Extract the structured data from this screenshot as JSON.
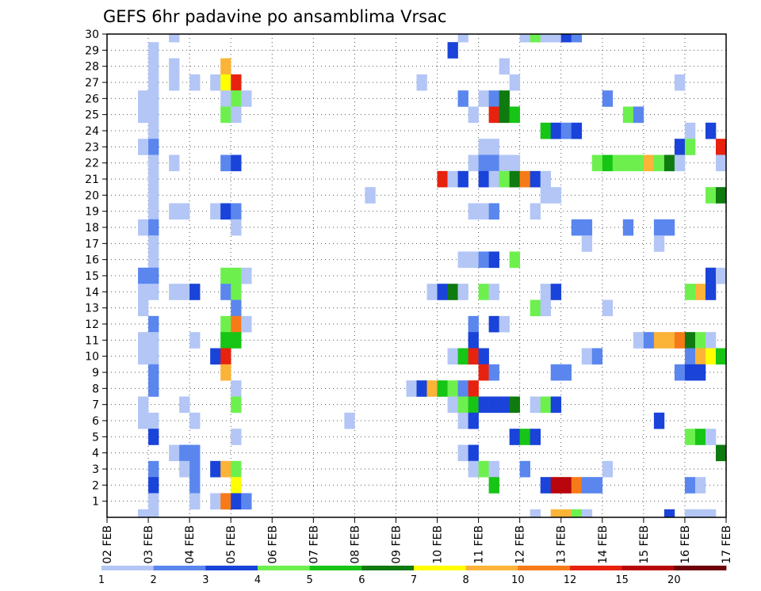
{
  "chart_data": {
    "type": "heatmap",
    "title": "GEFS 6hr padavine po ansamblima Vrsac",
    "y_tick_labels": [
      "1",
      "2",
      "3",
      "4",
      "5",
      "6",
      "7",
      "8",
      "9",
      "10",
      "11",
      "12",
      "13",
      "14",
      "15",
      "16",
      "17",
      "18",
      "19",
      "20",
      "21",
      "22",
      "23",
      "24",
      "25",
      "26",
      "27",
      "28",
      "29",
      "30"
    ],
    "x_tick_labels": [
      "02 FEB",
      "03 FEB",
      "04 FEB",
      "05 FEB",
      "06 FEB",
      "07 FEB",
      "08 FEB",
      "09 FEB",
      "10 FEB",
      "11 FEB",
      "12 FEB",
      "13 FEB",
      "14 FEB",
      "15 FEB",
      "16 FEB",
      "17 FEB"
    ],
    "x_steps": 60,
    "grid": true,
    "legend": {
      "placement": "bottom",
      "labels": [
        "1",
        "2",
        "3",
        "4",
        "5",
        "6",
        "7",
        "8",
        "10",
        "12",
        "15",
        "20"
      ],
      "colors": [
        "#b3c6f5",
        "#5a86ee",
        "#1a43d9",
        "#6df04e",
        "#16c516",
        "#0f7a0f",
        "#ffff00",
        "#fbb338",
        "#f77a18",
        "#e7220f",
        "#b8060c",
        "#6e0206"
      ]
    },
    "colors": {
      "c1": "#b3c6f5",
      "c2": "#5a86ee",
      "c3": "#1a43d9",
      "c4": "#6df04e",
      "c5": "#16c516",
      "c6": "#0f7a0f",
      "c7": "#ffff00",
      "c8": "#fbb338",
      "c10": "#f77a18",
      "c12": "#e7220f",
      "c15": "#b8060c",
      "c20": "#6e0206"
    },
    "cells": [
      {
        "m": 30,
        "t": 7,
        "c": 1
      },
      {
        "m": 30,
        "t": 35,
        "c": 1
      },
      {
        "m": 30,
        "t": 41,
        "c": 1
      },
      {
        "m": 30,
        "t": 42,
        "c": 4
      },
      {
        "m": 30,
        "t": 43,
        "c": 1
      },
      {
        "m": 30,
        "t": 44,
        "c": 1
      },
      {
        "m": 30,
        "t": 45,
        "c": 3
      },
      {
        "m": 30,
        "t": 46,
        "c": 2
      },
      {
        "m": 29,
        "t": 5,
        "c": 1
      },
      {
        "m": 29,
        "t": 34,
        "c": 3
      },
      {
        "m": 28,
        "t": 5,
        "c": 1
      },
      {
        "m": 28,
        "t": 7,
        "c": 1
      },
      {
        "m": 28,
        "t": 12,
        "c": 8
      },
      {
        "m": 28,
        "t": 39,
        "c": 1
      },
      {
        "m": 27,
        "t": 5,
        "c": 1
      },
      {
        "m": 27,
        "t": 7,
        "c": 1
      },
      {
        "m": 27,
        "t": 9,
        "c": 1
      },
      {
        "m": 27,
        "t": 11,
        "c": 1
      },
      {
        "m": 27,
        "t": 12,
        "c": 7
      },
      {
        "m": 27,
        "t": 13,
        "c": 12
      },
      {
        "m": 27,
        "t": 31,
        "c": 1
      },
      {
        "m": 27,
        "t": 40,
        "c": 1
      },
      {
        "m": 27,
        "t": 56,
        "c": 1
      },
      {
        "m": 26,
        "t": 4,
        "c": 1
      },
      {
        "m": 26,
        "t": 5,
        "c": 1
      },
      {
        "m": 26,
        "t": 12,
        "c": 1
      },
      {
        "m": 26,
        "t": 13,
        "c": 4
      },
      {
        "m": 26,
        "t": 14,
        "c": 1
      },
      {
        "m": 26,
        "t": 35,
        "c": 2
      },
      {
        "m": 26,
        "t": 37,
        "c": 1
      },
      {
        "m": 26,
        "t": 38,
        "c": 2
      },
      {
        "m": 26,
        "t": 39,
        "c": 6
      },
      {
        "m": 26,
        "t": 49,
        "c": 2
      },
      {
        "m": 25,
        "t": 4,
        "c": 1
      },
      {
        "m": 25,
        "t": 5,
        "c": 1
      },
      {
        "m": 25,
        "t": 12,
        "c": 4
      },
      {
        "m": 25,
        "t": 13,
        "c": 1
      },
      {
        "m": 25,
        "t": 36,
        "c": 1
      },
      {
        "m": 25,
        "t": 38,
        "c": 12
      },
      {
        "m": 25,
        "t": 39,
        "c": 6
      },
      {
        "m": 25,
        "t": 40,
        "c": 5
      },
      {
        "m": 25,
        "t": 51,
        "c": 4
      },
      {
        "m": 25,
        "t": 52,
        "c": 2
      },
      {
        "m": 24,
        "t": 5,
        "c": 1
      },
      {
        "m": 24,
        "t": 43,
        "c": 5
      },
      {
        "m": 24,
        "t": 44,
        "c": 3
      },
      {
        "m": 24,
        "t": 45,
        "c": 2
      },
      {
        "m": 24,
        "t": 46,
        "c": 3
      },
      {
        "m": 24,
        "t": 57,
        "c": 1
      },
      {
        "m": 24,
        "t": 59,
        "c": 3
      },
      {
        "m": 23,
        "t": 4,
        "c": 1
      },
      {
        "m": 23,
        "t": 5,
        "c": 2
      },
      {
        "m": 23,
        "t": 37,
        "c": 1
      },
      {
        "m": 23,
        "t": 38,
        "c": 1
      },
      {
        "m": 23,
        "t": 56,
        "c": 3
      },
      {
        "m": 23,
        "t": 57,
        "c": 4
      },
      {
        "m": 23,
        "t": 60,
        "c": 12
      },
      {
        "m": 22,
        "t": 5,
        "c": 1
      },
      {
        "m": 22,
        "t": 7,
        "c": 1
      },
      {
        "m": 22,
        "t": 12,
        "c": 2
      },
      {
        "m": 22,
        "t": 13,
        "c": 3
      },
      {
        "m": 22,
        "t": 36,
        "c": 1
      },
      {
        "m": 22,
        "t": 37,
        "c": 2
      },
      {
        "m": 22,
        "t": 38,
        "c": 2
      },
      {
        "m": 22,
        "t": 39,
        "c": 1
      },
      {
        "m": 22,
        "t": 40,
        "c": 1
      },
      {
        "m": 22,
        "t": 48,
        "c": 4
      },
      {
        "m": 22,
        "t": 49,
        "c": 5
      },
      {
        "m": 22,
        "t": 50,
        "c": 4
      },
      {
        "m": 22,
        "t": 51,
        "c": 4
      },
      {
        "m": 22,
        "t": 52,
        "c": 4
      },
      {
        "m": 22,
        "t": 53,
        "c": 8
      },
      {
        "m": 22,
        "t": 54,
        "c": 4
      },
      {
        "m": 22,
        "t": 55,
        "c": 6
      },
      {
        "m": 22,
        "t": 56,
        "c": 1
      },
      {
        "m": 22,
        "t": 60,
        "c": 1
      },
      {
        "m": 21,
        "t": 5,
        "c": 1
      },
      {
        "m": 21,
        "t": 33,
        "c": 12
      },
      {
        "m": 21,
        "t": 34,
        "c": 1
      },
      {
        "m": 21,
        "t": 35,
        "c": 3
      },
      {
        "m": 21,
        "t": 37,
        "c": 3
      },
      {
        "m": 21,
        "t": 38,
        "c": 1
      },
      {
        "m": 21,
        "t": 39,
        "c": 4
      },
      {
        "m": 21,
        "t": 40,
        "c": 6
      },
      {
        "m": 21,
        "t": 41,
        "c": 10
      },
      {
        "m": 21,
        "t": 42,
        "c": 3
      },
      {
        "m": 21,
        "t": 43,
        "c": 1
      },
      {
        "m": 20,
        "t": 5,
        "c": 1
      },
      {
        "m": 20,
        "t": 26,
        "c": 1
      },
      {
        "m": 20,
        "t": 43,
        "c": 1
      },
      {
        "m": 20,
        "t": 44,
        "c": 1
      },
      {
        "m": 20,
        "t": 59,
        "c": 4
      },
      {
        "m": 20,
        "t": 60,
        "c": 6
      },
      {
        "m": 19,
        "t": 5,
        "c": 1
      },
      {
        "m": 19,
        "t": 7,
        "c": 1
      },
      {
        "m": 19,
        "t": 8,
        "c": 1
      },
      {
        "m": 19,
        "t": 11,
        "c": 1
      },
      {
        "m": 19,
        "t": 12,
        "c": 3
      },
      {
        "m": 19,
        "t": 13,
        "c": 2
      },
      {
        "m": 19,
        "t": 36,
        "c": 1
      },
      {
        "m": 19,
        "t": 37,
        "c": 1
      },
      {
        "m": 19,
        "t": 38,
        "c": 2
      },
      {
        "m": 19,
        "t": 42,
        "c": 1
      },
      {
        "m": 18,
        "t": 4,
        "c": 1
      },
      {
        "m": 18,
        "t": 5,
        "c": 2
      },
      {
        "m": 18,
        "t": 13,
        "c": 1
      },
      {
        "m": 18,
        "t": 46,
        "c": 2
      },
      {
        "m": 18,
        "t": 47,
        "c": 2
      },
      {
        "m": 18,
        "t": 51,
        "c": 2
      },
      {
        "m": 18,
        "t": 54,
        "c": 2
      },
      {
        "m": 18,
        "t": 55,
        "c": 2
      },
      {
        "m": 17,
        "t": 5,
        "c": 1
      },
      {
        "m": 17,
        "t": 47,
        "c": 1
      },
      {
        "m": 17,
        "t": 54,
        "c": 1
      },
      {
        "m": 16,
        "t": 5,
        "c": 1
      },
      {
        "m": 16,
        "t": 35,
        "c": 1
      },
      {
        "m": 16,
        "t": 36,
        "c": 1
      },
      {
        "m": 16,
        "t": 37,
        "c": 2
      },
      {
        "m": 16,
        "t": 38,
        "c": 3
      },
      {
        "m": 16,
        "t": 40,
        "c": 4
      },
      {
        "m": 15,
        "t": 4,
        "c": 2
      },
      {
        "m": 15,
        "t": 5,
        "c": 2
      },
      {
        "m": 15,
        "t": 12,
        "c": 4
      },
      {
        "m": 15,
        "t": 13,
        "c": 4
      },
      {
        "m": 15,
        "t": 14,
        "c": 1
      },
      {
        "m": 15,
        "t": 59,
        "c": 3
      },
      {
        "m": 15,
        "t": 60,
        "c": 1
      },
      {
        "m": 14,
        "t": 4,
        "c": 1
      },
      {
        "m": 14,
        "t": 5,
        "c": 1
      },
      {
        "m": 14,
        "t": 7,
        "c": 1
      },
      {
        "m": 14,
        "t": 8,
        "c": 1
      },
      {
        "m": 14,
        "t": 9,
        "c": 3
      },
      {
        "m": 14,
        "t": 12,
        "c": 2
      },
      {
        "m": 14,
        "t": 13,
        "c": 4
      },
      {
        "m": 14,
        "t": 32,
        "c": 1
      },
      {
        "m": 14,
        "t": 33,
        "c": 3
      },
      {
        "m": 14,
        "t": 34,
        "c": 6
      },
      {
        "m": 14,
        "t": 35,
        "c": 1
      },
      {
        "m": 14,
        "t": 37,
        "c": 4
      },
      {
        "m": 14,
        "t": 38,
        "c": 1
      },
      {
        "m": 14,
        "t": 43,
        "c": 1
      },
      {
        "m": 14,
        "t": 44,
        "c": 3
      },
      {
        "m": 14,
        "t": 57,
        "c": 4
      },
      {
        "m": 14,
        "t": 58,
        "c": 8
      },
      {
        "m": 14,
        "t": 59,
        "c": 3
      },
      {
        "m": 13,
        "t": 4,
        "c": 1
      },
      {
        "m": 13,
        "t": 13,
        "c": 2
      },
      {
        "m": 13,
        "t": 42,
        "c": 4
      },
      {
        "m": 13,
        "t": 43,
        "c": 1
      },
      {
        "m": 13,
        "t": 49,
        "c": 1
      },
      {
        "m": 12,
        "t": 5,
        "c": 2
      },
      {
        "m": 12,
        "t": 12,
        "c": 4
      },
      {
        "m": 12,
        "t": 13,
        "c": 10
      },
      {
        "m": 12,
        "t": 14,
        "c": 1
      },
      {
        "m": 12,
        "t": 36,
        "c": 2
      },
      {
        "m": 12,
        "t": 38,
        "c": 3
      },
      {
        "m": 12,
        "t": 39,
        "c": 1
      },
      {
        "m": 11,
        "t": 4,
        "c": 1
      },
      {
        "m": 11,
        "t": 5,
        "c": 1
      },
      {
        "m": 11,
        "t": 9,
        "c": 1
      },
      {
        "m": 11,
        "t": 12,
        "c": 5
      },
      {
        "m": 11,
        "t": 13,
        "c": 5
      },
      {
        "m": 11,
        "t": 36,
        "c": 3
      },
      {
        "m": 11,
        "t": 52,
        "c": 1
      },
      {
        "m": 11,
        "t": 53,
        "c": 2
      },
      {
        "m": 11,
        "t": 54,
        "c": 8
      },
      {
        "m": 11,
        "t": 55,
        "c": 8
      },
      {
        "m": 11,
        "t": 56,
        "c": 10
      },
      {
        "m": 11,
        "t": 57,
        "c": 6
      },
      {
        "m": 11,
        "t": 58,
        "c": 4
      },
      {
        "m": 11,
        "t": 59,
        "c": 1
      },
      {
        "m": 10,
        "t": 4,
        "c": 1
      },
      {
        "m": 10,
        "t": 5,
        "c": 1
      },
      {
        "m": 10,
        "t": 11,
        "c": 3
      },
      {
        "m": 10,
        "t": 12,
        "c": 12
      },
      {
        "m": 10,
        "t": 34,
        "c": 1
      },
      {
        "m": 10,
        "t": 35,
        "c": 5
      },
      {
        "m": 10,
        "t": 36,
        "c": 12
      },
      {
        "m": 10,
        "t": 37,
        "c": 3
      },
      {
        "m": 10,
        "t": 47,
        "c": 1
      },
      {
        "m": 10,
        "t": 48,
        "c": 2
      },
      {
        "m": 10,
        "t": 57,
        "c": 2
      },
      {
        "m": 10,
        "t": 58,
        "c": 8
      },
      {
        "m": 10,
        "t": 59,
        "c": 7
      },
      {
        "m": 10,
        "t": 60,
        "c": 5
      },
      {
        "m": 9,
        "t": 5,
        "c": 2
      },
      {
        "m": 9,
        "t": 12,
        "c": 8
      },
      {
        "m": 9,
        "t": 37,
        "c": 12
      },
      {
        "m": 9,
        "t": 38,
        "c": 2
      },
      {
        "m": 9,
        "t": 44,
        "c": 2
      },
      {
        "m": 9,
        "t": 45,
        "c": 2
      },
      {
        "m": 9,
        "t": 56,
        "c": 2
      },
      {
        "m": 9,
        "t": 57,
        "c": 3
      },
      {
        "m": 9,
        "t": 58,
        "c": 3
      },
      {
        "m": 8,
        "t": 5,
        "c": 2
      },
      {
        "m": 8,
        "t": 13,
        "c": 1
      },
      {
        "m": 8,
        "t": 30,
        "c": 1
      },
      {
        "m": 8,
        "t": 31,
        "c": 3
      },
      {
        "m": 8,
        "t": 32,
        "c": 8
      },
      {
        "m": 8,
        "t": 33,
        "c": 5
      },
      {
        "m": 8,
        "t": 34,
        "c": 4
      },
      {
        "m": 8,
        "t": 35,
        "c": 2
      },
      {
        "m": 8,
        "t": 36,
        "c": 12
      },
      {
        "m": 7,
        "t": 4,
        "c": 1
      },
      {
        "m": 7,
        "t": 8,
        "c": 1
      },
      {
        "m": 7,
        "t": 13,
        "c": 4
      },
      {
        "m": 7,
        "t": 34,
        "c": 1
      },
      {
        "m": 7,
        "t": 35,
        "c": 4
      },
      {
        "m": 7,
        "t": 36,
        "c": 5
      },
      {
        "m": 7,
        "t": 37,
        "c": 3
      },
      {
        "m": 7,
        "t": 38,
        "c": 3
      },
      {
        "m": 7,
        "t": 39,
        "c": 3
      },
      {
        "m": 7,
        "t": 40,
        "c": 6
      },
      {
        "m": 7,
        "t": 42,
        "c": 1
      },
      {
        "m": 7,
        "t": 43,
        "c": 4
      },
      {
        "m": 7,
        "t": 44,
        "c": 3
      },
      {
        "m": 6,
        "t": 4,
        "c": 1
      },
      {
        "m": 6,
        "t": 5,
        "c": 1
      },
      {
        "m": 6,
        "t": 9,
        "c": 1
      },
      {
        "m": 6,
        "t": 24,
        "c": 1
      },
      {
        "m": 6,
        "t": 35,
        "c": 1
      },
      {
        "m": 6,
        "t": 36,
        "c": 3
      },
      {
        "m": 6,
        "t": 54,
        "c": 3
      },
      {
        "m": 5,
        "t": 5,
        "c": 3
      },
      {
        "m": 5,
        "t": 13,
        "c": 1
      },
      {
        "m": 5,
        "t": 40,
        "c": 3
      },
      {
        "m": 5,
        "t": 41,
        "c": 5
      },
      {
        "m": 5,
        "t": 42,
        "c": 3
      },
      {
        "m": 5,
        "t": 57,
        "c": 4
      },
      {
        "m": 5,
        "t": 58,
        "c": 5
      },
      {
        "m": 5,
        "t": 59,
        "c": 1
      },
      {
        "m": 4,
        "t": 7,
        "c": 1
      },
      {
        "m": 4,
        "t": 8,
        "c": 2
      },
      {
        "m": 4,
        "t": 9,
        "c": 2
      },
      {
        "m": 4,
        "t": 35,
        "c": 1
      },
      {
        "m": 4,
        "t": 36,
        "c": 3
      },
      {
        "m": 4,
        "t": 60,
        "c": 6
      },
      {
        "m": 3,
        "t": 5,
        "c": 2
      },
      {
        "m": 3,
        "t": 8,
        "c": 1
      },
      {
        "m": 3,
        "t": 9,
        "c": 2
      },
      {
        "m": 3,
        "t": 11,
        "c": 3
      },
      {
        "m": 3,
        "t": 12,
        "c": 8
      },
      {
        "m": 3,
        "t": 13,
        "c": 4
      },
      {
        "m": 3,
        "t": 36,
        "c": 1
      },
      {
        "m": 3,
        "t": 37,
        "c": 4
      },
      {
        "m": 3,
        "t": 38,
        "c": 1
      },
      {
        "m": 3,
        "t": 41,
        "c": 2
      },
      {
        "m": 3,
        "t": 49,
        "c": 1
      },
      {
        "m": 2,
        "t": 5,
        "c": 3
      },
      {
        "m": 2,
        "t": 9,
        "c": 2
      },
      {
        "m": 2,
        "t": 13,
        "c": 7
      },
      {
        "m": 2,
        "t": 38,
        "c": 5
      },
      {
        "m": 2,
        "t": 43,
        "c": 3
      },
      {
        "m": 2,
        "t": 44,
        "c": 15
      },
      {
        "m": 2,
        "t": 45,
        "c": 15
      },
      {
        "m": 2,
        "t": 46,
        "c": 10
      },
      {
        "m": 2,
        "t": 47,
        "c": 2
      },
      {
        "m": 2,
        "t": 48,
        "c": 2
      },
      {
        "m": 2,
        "t": 57,
        "c": 2
      },
      {
        "m": 2,
        "t": 58,
        "c": 1
      },
      {
        "m": 1,
        "t": 5,
        "c": 1
      },
      {
        "m": 1,
        "t": 9,
        "c": 1
      },
      {
        "m": 1,
        "t": 11,
        "c": 1
      },
      {
        "m": 1,
        "t": 12,
        "c": 10
      },
      {
        "m": 1,
        "t": 13,
        "c": 3
      },
      {
        "m": 1,
        "t": 14,
        "c": 2
      },
      {
        "m": 0,
        "t": 4,
        "c": 1
      },
      {
        "m": 0,
        "t": 5,
        "c": 1
      },
      {
        "m": 0,
        "t": 42,
        "c": 1
      },
      {
        "m": 0,
        "t": 44,
        "c": 8
      },
      {
        "m": 0,
        "t": 45,
        "c": 8
      },
      {
        "m": 0,
        "t": 46,
        "c": 4
      },
      {
        "m": 0,
        "t": 47,
        "c": 1
      },
      {
        "m": 0,
        "t": 55,
        "c": 3
      },
      {
        "m": 0,
        "t": 57,
        "c": 1
      },
      {
        "m": 0,
        "t": 58,
        "c": 1
      },
      {
        "m": 0,
        "t": 59,
        "c": 1
      }
    ]
  }
}
